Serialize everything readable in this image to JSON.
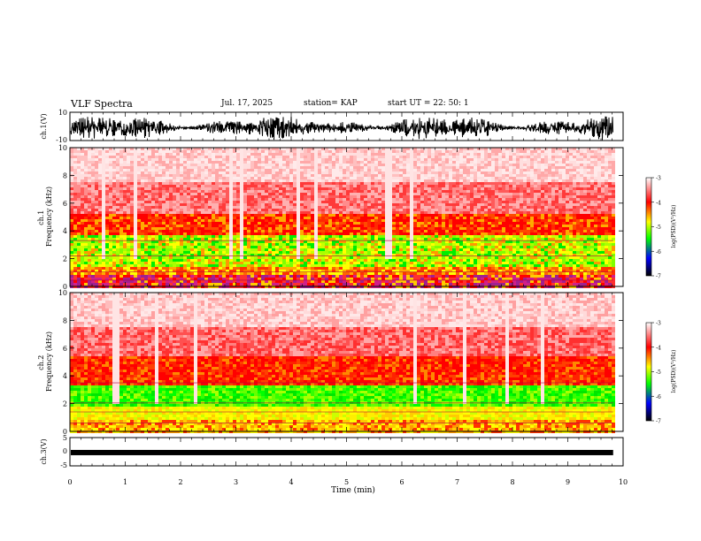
{
  "header": {
    "title": "VLF Spectra",
    "date": "Jul. 17, 2025",
    "station": "station= KAP",
    "start": "start UT =  22: 50: 1"
  },
  "colors": {
    "ramp": [
      "#ffffff",
      "#ff0000",
      "#ffff00",
      "#00ff00",
      "#0000ff",
      "#000000"
    ]
  },
  "chart_data": [
    {
      "type": "line",
      "ylabel": "ch.1(V)",
      "ylim": [
        -10,
        10
      ],
      "yticks": [
        "10",
        "-10"
      ],
      "note": "dense black waveform spanning most of the range"
    },
    {
      "type": "heatmap",
      "ylabel": "ch.1\nFrequency (kHz)",
      "ylim": [
        0,
        10
      ],
      "yticks": [
        "0",
        "2",
        "4",
        "6",
        "8",
        "10"
      ],
      "colorbar": {
        "label": "log(PSD)(V²/Hz)",
        "ticks": [
          "-3",
          "-4",
          "-5",
          "-6",
          "-7"
        ],
        "range": [
          -7,
          -3
        ]
      },
      "bands": [
        {
          "from": 0,
          "to": 0.8,
          "color": "red-purple lines"
        },
        {
          "from": 0.8,
          "to": 1.4,
          "color": "red-yellow"
        },
        {
          "from": 1.4,
          "to": 3.6,
          "color": "green-yellow"
        },
        {
          "from": 3.6,
          "to": 5.2,
          "color": "red"
        },
        {
          "from": 5.2,
          "to": 10,
          "color": "pink-white"
        }
      ]
    },
    {
      "type": "heatmap",
      "ylabel": "ch.2\nFrequency (kHz)",
      "ylim": [
        0,
        10
      ],
      "yticks": [
        "0",
        "2",
        "4",
        "6",
        "8",
        "10"
      ],
      "colorbar": {
        "label": "log(PSD)(V²/Hz)",
        "ticks": [
          "-3",
          "-4",
          "-5",
          "-6",
          "-7"
        ],
        "range": [
          -7,
          -3
        ]
      },
      "bands": [
        {
          "from": 0,
          "to": 0.8,
          "color": "red-yellow lines"
        },
        {
          "from": 0.8,
          "to": 1.8,
          "color": "yellow"
        },
        {
          "from": 1.8,
          "to": 3.4,
          "color": "green"
        },
        {
          "from": 3.4,
          "to": 5.5,
          "color": "red"
        },
        {
          "from": 5.5,
          "to": 10,
          "color": "pink-white"
        }
      ]
    },
    {
      "type": "line",
      "ylabel": "ch.3(V)",
      "ylim": [
        -5,
        5
      ],
      "yticks": [
        "5",
        "0",
        "-5"
      ],
      "level": -0.3,
      "note": "thick flat black trace"
    }
  ],
  "xaxis": {
    "label": "Time (min)",
    "ticks": [
      "0",
      "1",
      "2",
      "3",
      "4",
      "5",
      "6",
      "7",
      "8",
      "9",
      "10"
    ],
    "xlim": [
      0,
      10
    ],
    "data_end": 9.82
  }
}
